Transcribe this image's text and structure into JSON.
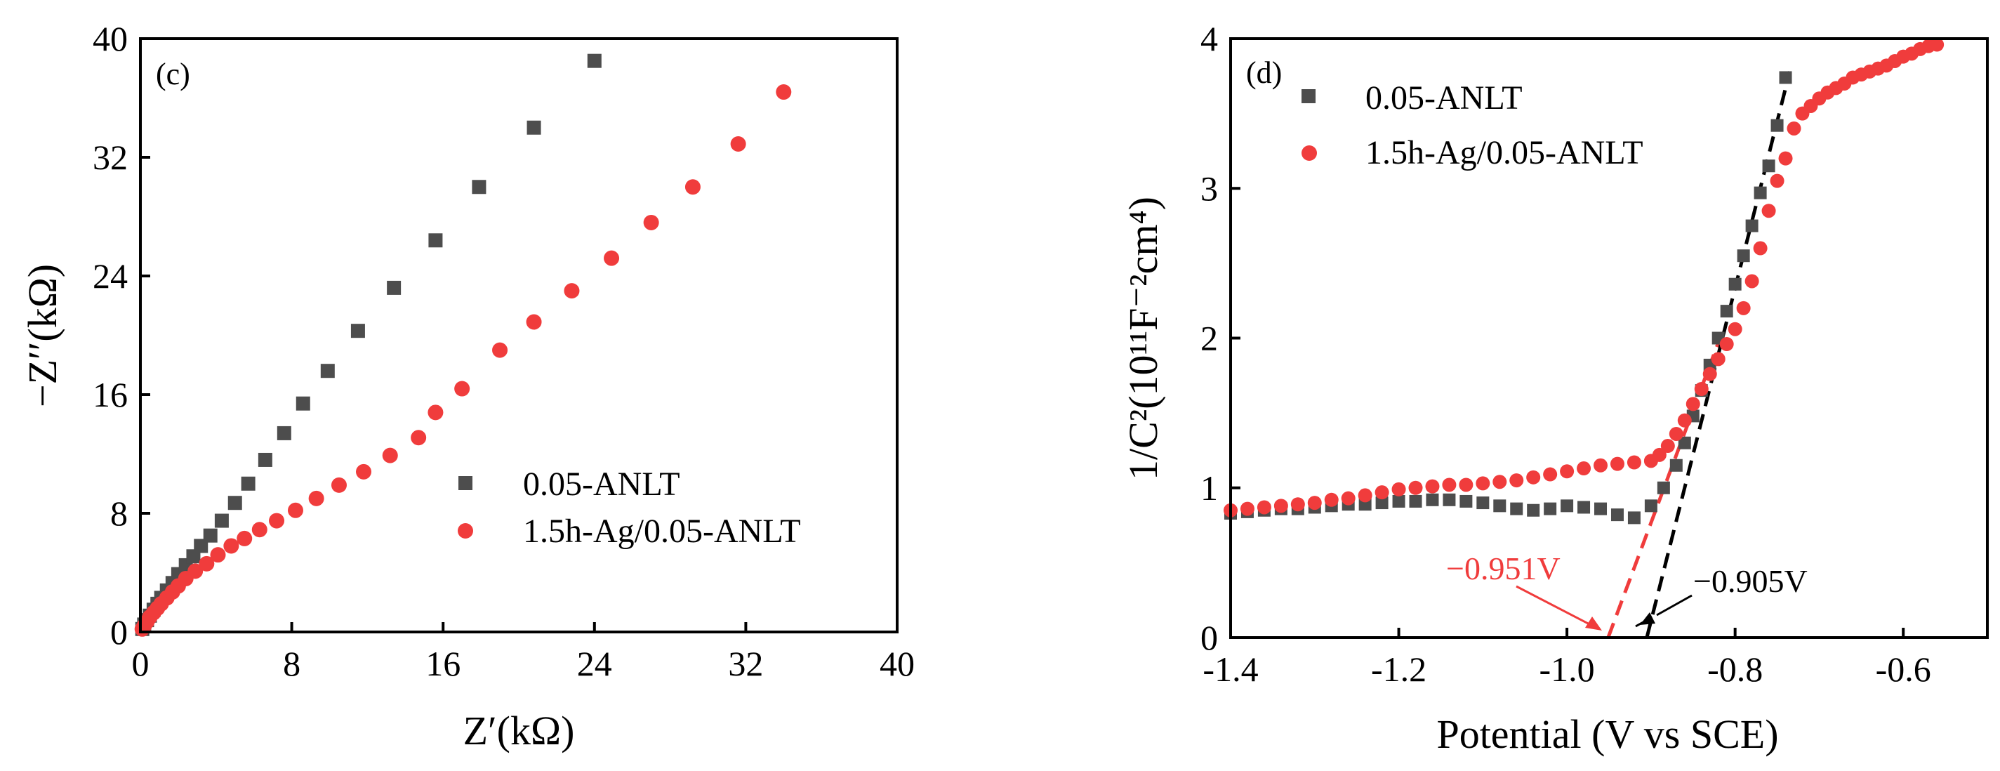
{
  "colors": {
    "series_a": "#4d4d4d",
    "series_b": "#f03c3c",
    "axis": "#000000",
    "black_annot": "#000000"
  },
  "chart_data": [
    {
      "type": "scatter",
      "panel_label": "(c)",
      "xlabel": "Z′(kΩ)",
      "ylabel": "−Z′′(kΩ)",
      "xlim": [
        0,
        40
      ],
      "ylim": [
        0,
        40
      ],
      "xticks": [
        0,
        8,
        16,
        24,
        32,
        40
      ],
      "yticks": [
        0,
        8,
        16,
        24,
        32,
        40
      ],
      "legend_position": "lower-right",
      "series": [
        {
          "name": "0.05-ANLT",
          "marker": "square",
          "x": [
            0.1,
            0.2,
            0.35,
            0.5,
            0.7,
            0.9,
            1.1,
            1.4,
            1.7,
            2.0,
            2.4,
            2.8,
            3.2,
            3.7,
            4.3,
            5.0,
            5.7,
            6.6,
            7.6,
            8.6,
            9.9,
            11.5,
            13.4,
            15.6,
            17.9,
            20.8,
            24.0
          ],
          "y": [
            0.2,
            0.5,
            0.8,
            1.1,
            1.5,
            1.9,
            2.3,
            2.8,
            3.3,
            3.9,
            4.5,
            5.1,
            5.8,
            6.5,
            7.5,
            8.7,
            10.0,
            11.6,
            13.4,
            15.4,
            17.6,
            20.3,
            23.2,
            26.4,
            30.0,
            34.0,
            38.5
          ]
        },
        {
          "name": "1.5h-Ag/0.05-ANLT",
          "marker": "circle",
          "x": [
            0.1,
            0.2,
            0.35,
            0.5,
            0.7,
            0.9,
            1.1,
            1.4,
            1.7,
            2.0,
            2.4,
            2.9,
            3.5,
            4.1,
            4.8,
            5.5,
            6.3,
            7.2,
            8.2,
            9.3,
            10.5,
            11.8,
            13.2,
            14.7,
            15.6,
            17.0,
            19.0,
            20.8,
            22.8,
            24.9,
            27.0,
            29.2,
            31.6,
            34.0
          ],
          "y": [
            0.2,
            0.4,
            0.7,
            1.0,
            1.3,
            1.6,
            1.9,
            2.3,
            2.7,
            3.1,
            3.6,
            4.1,
            4.6,
            5.2,
            5.8,
            6.3,
            6.9,
            7.5,
            8.2,
            9.0,
            9.9,
            10.8,
            11.9,
            13.1,
            14.8,
            16.4,
            19.0,
            20.9,
            23.0,
            25.2,
            27.6,
            30.0,
            32.9,
            36.4
          ]
        }
      ]
    },
    {
      "type": "scatter",
      "panel_label": "(d)",
      "xlabel": "Potential (V vs SCE)",
      "ylabel": "1/C²(10¹¹F⁻²cm⁴)",
      "xlim": [
        -1.4,
        -0.5
      ],
      "ylim": [
        0,
        4
      ],
      "xticks": [
        -1.4,
        -1.2,
        -1.0,
        -0.8,
        -0.6
      ],
      "yticks": [
        0,
        1,
        2,
        3,
        4
      ],
      "legend_position": "top-left",
      "annotations": [
        {
          "text": "−0.951V",
          "x_intercept": -0.951,
          "color": "series_b"
        },
        {
          "text": "−0.905V",
          "x_intercept": -0.905,
          "color": "black_annot"
        }
      ],
      "fit_lines": [
        {
          "series": "1.5h-Ag/0.05-ANLT",
          "from": [
            -0.951,
            0
          ],
          "to": [
            -0.818,
            2.0
          ]
        },
        {
          "series": "0.05-ANLT",
          "from": [
            -0.905,
            0
          ],
          "to": [
            -0.735,
            3.78
          ]
        }
      ],
      "series": [
        {
          "name": "0.05-ANLT",
          "marker": "square",
          "x": [
            -1.4,
            -1.38,
            -1.36,
            -1.34,
            -1.32,
            -1.3,
            -1.28,
            -1.26,
            -1.24,
            -1.22,
            -1.2,
            -1.18,
            -1.16,
            -1.14,
            -1.12,
            -1.1,
            -1.08,
            -1.06,
            -1.04,
            -1.02,
            -1.0,
            -0.98,
            -0.96,
            -0.94,
            -0.92,
            -0.9,
            -0.885,
            -0.87,
            -0.86,
            -0.85,
            -0.84,
            -0.83,
            -0.82,
            -0.81,
            -0.8,
            -0.79,
            -0.78,
            -0.77,
            -0.76,
            -0.75,
            -0.74
          ],
          "y": [
            0.83,
            0.84,
            0.85,
            0.86,
            0.86,
            0.87,
            0.88,
            0.89,
            0.89,
            0.9,
            0.91,
            0.91,
            0.92,
            0.92,
            0.91,
            0.9,
            0.88,
            0.86,
            0.85,
            0.86,
            0.88,
            0.87,
            0.86,
            0.82,
            0.8,
            0.88,
            1.0,
            1.15,
            1.3,
            1.48,
            1.65,
            1.82,
            2.0,
            2.18,
            2.36,
            2.55,
            2.75,
            2.97,
            3.15,
            3.42,
            3.74
          ]
        },
        {
          "name": "1.5h-Ag/0.05-ANLT",
          "marker": "circle",
          "x": [
            -1.4,
            -1.38,
            -1.36,
            -1.34,
            -1.32,
            -1.3,
            -1.28,
            -1.26,
            -1.24,
            -1.22,
            -1.2,
            -1.18,
            -1.16,
            -1.14,
            -1.12,
            -1.1,
            -1.08,
            -1.06,
            -1.04,
            -1.02,
            -1.0,
            -0.98,
            -0.96,
            -0.94,
            -0.92,
            -0.9,
            -0.89,
            -0.88,
            -0.87,
            -0.86,
            -0.85,
            -0.84,
            -0.83,
            -0.82,
            -0.81,
            -0.8,
            -0.79,
            -0.78,
            -0.77,
            -0.76,
            -0.75,
            -0.74,
            -0.73,
            -0.72,
            -0.71,
            -0.7,
            -0.69,
            -0.68,
            -0.67,
            -0.66,
            -0.65,
            -0.64,
            -0.63,
            -0.62,
            -0.61,
            -0.6,
            -0.59,
            -0.58,
            -0.57,
            -0.56
          ],
          "y": [
            0.85,
            0.86,
            0.87,
            0.88,
            0.89,
            0.9,
            0.92,
            0.93,
            0.95,
            0.97,
            0.99,
            1.0,
            1.01,
            1.02,
            1.02,
            1.03,
            1.04,
            1.05,
            1.07,
            1.09,
            1.11,
            1.13,
            1.15,
            1.16,
            1.17,
            1.18,
            1.22,
            1.28,
            1.36,
            1.45,
            1.56,
            1.66,
            1.76,
            1.86,
            1.96,
            2.06,
            2.2,
            2.38,
            2.6,
            2.85,
            3.05,
            3.2,
            3.4,
            3.5,
            3.55,
            3.6,
            3.64,
            3.67,
            3.7,
            3.74,
            3.76,
            3.78,
            3.8,
            3.82,
            3.85,
            3.88,
            3.9,
            3.93,
            3.95,
            3.96
          ]
        }
      ]
    }
  ]
}
